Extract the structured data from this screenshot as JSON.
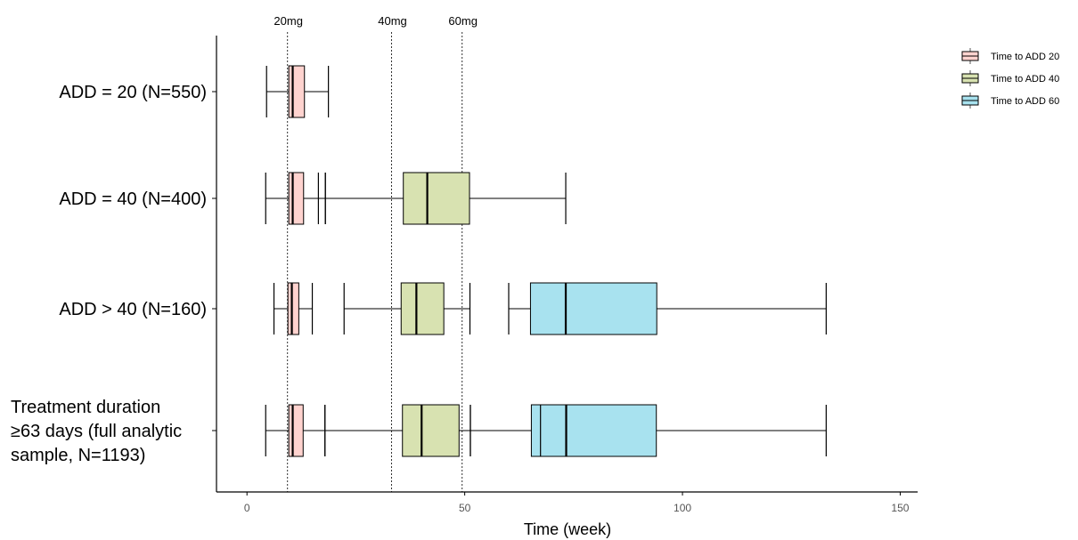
{
  "chart_data": {
    "type": "boxplot",
    "orientation": "horizontal",
    "xlabel": "Time (week)",
    "xlim": [
      -7,
      154
    ],
    "x_ticks": [
      0,
      50,
      100,
      150
    ],
    "grid": false,
    "legend_position": "top-right",
    "reference_lines": [
      {
        "label": "20mg",
        "x": 9.3
      },
      {
        "label": "40mg",
        "x": 33.2
      },
      {
        "label": "60mg",
        "x": 49.4
      }
    ],
    "series": [
      {
        "name": "Time to ADD 20",
        "color": "#ffd3cf"
      },
      {
        "name": "Time to ADD 40",
        "color": "#d8e2b1"
      },
      {
        "name": "Time to ADD 60",
        "color": "#a8e2ef"
      }
    ],
    "groups": [
      {
        "label_lines": [
          "ADD = 20 (N=550)"
        ],
        "boxes": [
          {
            "series": 0,
            "whisker_low": 4.5,
            "q1": 9.6,
            "median": 10.5,
            "q3": 13.2,
            "whisker_high": 18.7,
            "extra_lines": []
          }
        ]
      },
      {
        "label_lines": [
          "ADD = 40 (N=400)"
        ],
        "boxes": [
          {
            "series": 0,
            "whisker_low": 4.3,
            "q1": 9.6,
            "median": 10.5,
            "q3": 13.0,
            "whisker_high": 18.0,
            "extra_lines": [
              16.4
            ]
          },
          {
            "series": 1,
            "whisker_low": 18.0,
            "q1": 35.9,
            "median": 41.4,
            "q3": 51.1,
            "whisker_high": 73.2,
            "extra_lines": []
          }
        ]
      },
      {
        "label_lines": [
          "ADD > 40 (N=160)"
        ],
        "boxes": [
          {
            "series": 0,
            "whisker_low": 6.2,
            "q1": 9.4,
            "median": 10.3,
            "q3": 11.9,
            "whisker_high": 15.0,
            "extra_lines": []
          },
          {
            "series": 1,
            "whisker_low": 22.3,
            "q1": 35.4,
            "median": 38.9,
            "q3": 45.2,
            "whisker_high": 51.2,
            "extra_lines": []
          },
          {
            "series": 2,
            "whisker_low": 60.1,
            "q1": 65.1,
            "median": 73.2,
            "q3": 94.1,
            "whisker_high": 133.0,
            "extra_lines": []
          }
        ]
      },
      {
        "label_lines": [
          "Treatment duration",
          "≥63 days (full analytic",
          "sample, N=1193)"
        ],
        "boxes": [
          {
            "series": 0,
            "whisker_low": 4.3,
            "q1": 9.6,
            "median": 10.5,
            "q3": 12.9,
            "whisker_high": 17.9,
            "extra_lines": []
          },
          {
            "series": 1,
            "whisker_low": 17.9,
            "q1": 35.7,
            "median": 40.1,
            "q3": 48.7,
            "whisker_high": 51.3,
            "extra_lines": []
          },
          {
            "series": 2,
            "whisker_low": 51.3,
            "q1": 65.3,
            "median": 73.3,
            "q3": 94.0,
            "whisker_high": 133.0,
            "extra_lines": [
              67.4
            ]
          }
        ]
      }
    ]
  }
}
